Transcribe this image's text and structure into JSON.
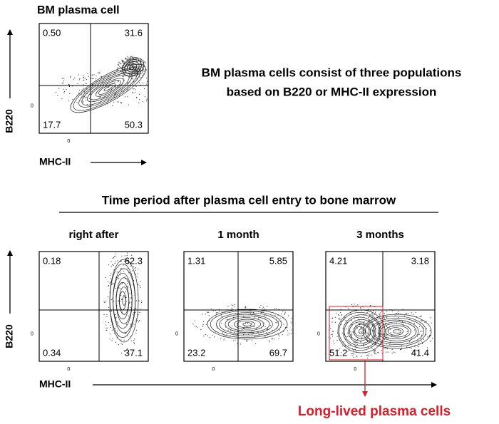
{
  "top_panel": {
    "title": "BM plasma cell",
    "quadrants": {
      "upper_left": "0.50",
      "upper_right": "31.6",
      "lower_left": "17.7",
      "lower_right": "50.3"
    },
    "y_axis_label": "B220",
    "x_axis_label": "MHC-II",
    "zero_label": "0"
  },
  "description": [
    "BM plasma cells consist of three populations",
    "based on B220 or MHC-II expression"
  ],
  "time_heading": "Time period after plasma cell entry to bone marrow",
  "panels": [
    {
      "title": "right after",
      "quadrants": {
        "upper_left": "0.18",
        "upper_right": "62.3",
        "lower_left": "0.34",
        "lower_right": "37.1"
      }
    },
    {
      "title": "1 month",
      "quadrants": {
        "upper_left": "1.31",
        "upper_right": "5.85",
        "lower_left": "23.2",
        "lower_right": "69.7"
      }
    },
    {
      "title": "3 months",
      "quadrants": {
        "upper_left": "4.21",
        "upper_right": "3.18",
        "lower_left": "51.2",
        "lower_right": "41.4"
      }
    }
  ],
  "bottom_axes": {
    "y_axis_label": "B220",
    "x_axis_label": "MHC-II",
    "zero_label": "0"
  },
  "callout": "Long-lived plasma cells"
}
